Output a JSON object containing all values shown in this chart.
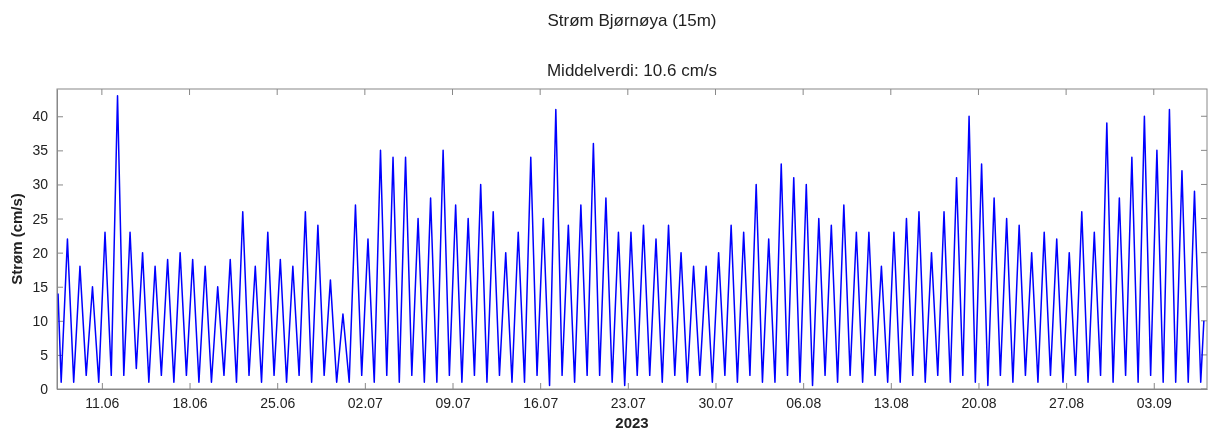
{
  "chart_data": {
    "type": "line",
    "title": "Strøm Bjørnøya (15m)",
    "subtitle": "Middelverdi: 10.6 cm/s",
    "xlabel": "2023",
    "ylabel": "Strøm (cm/s)",
    "xlim": [
      "2023-06-07T10:00",
      "2023-09-07T06:00"
    ],
    "xticks": [
      {
        "value": "2023-06-11",
        "label": "11.06"
      },
      {
        "value": "2023-06-18",
        "label": "18.06"
      },
      {
        "value": "2023-06-25",
        "label": "25.06"
      },
      {
        "value": "2023-07-02",
        "label": "02.07"
      },
      {
        "value": "2023-07-09",
        "label": "09.07"
      },
      {
        "value": "2023-07-16",
        "label": "16.07"
      },
      {
        "value": "2023-07-23",
        "label": "23.07"
      },
      {
        "value": "2023-07-30",
        "label": "30.07"
      },
      {
        "value": "2023-08-06",
        "label": "06.08"
      },
      {
        "value": "2023-08-13",
        "label": "13.08"
      },
      {
        "value": "2023-08-20",
        "label": "20.08"
      },
      {
        "value": "2023-08-27",
        "label": "27.08"
      },
      {
        "value": "2023-09-03",
        "label": "03.09"
      }
    ],
    "ylim": [
      0,
      44
    ],
    "yticks": [
      0,
      5,
      10,
      15,
      20,
      25,
      30,
      35,
      40
    ],
    "grid": false,
    "series": [
      {
        "color": "#0000ff",
        "x": [
          "2023-06-07T12:00",
          "2023-06-07T18:00",
          "2023-06-08T06:00",
          "2023-06-08T18:00",
          "2023-06-09T06:00",
          "2023-06-09T18:00",
          "2023-06-10T06:00",
          "2023-06-10T18:00",
          "2023-06-11T06:00",
          "2023-06-11T18:00",
          "2023-06-12T06:00",
          "2023-06-12T18:00",
          "2023-06-13T06:00",
          "2023-06-13T18:00",
          "2023-06-14T06:00",
          "2023-06-14T18:00",
          "2023-06-15T06:00",
          "2023-06-15T18:00",
          "2023-06-16T06:00",
          "2023-06-16T18:00",
          "2023-06-17T06:00",
          "2023-06-17T18:00",
          "2023-06-18T06:00",
          "2023-06-18T18:00",
          "2023-06-19T06:00",
          "2023-06-19T18:00",
          "2023-06-20T06:00",
          "2023-06-20T18:00",
          "2023-06-21T06:00",
          "2023-06-21T18:00",
          "2023-06-22T06:00",
          "2023-06-22T18:00",
          "2023-06-23T06:00",
          "2023-06-23T18:00",
          "2023-06-24T06:00",
          "2023-06-24T18:00",
          "2023-06-25T06:00",
          "2023-06-25T18:00",
          "2023-06-26T06:00",
          "2023-06-26T18:00",
          "2023-06-27T06:00",
          "2023-06-27T18:00",
          "2023-06-28T06:00",
          "2023-06-28T18:00",
          "2023-06-29T06:00",
          "2023-06-29T18:00",
          "2023-06-30T06:00",
          "2023-06-30T18:00",
          "2023-07-01T06:00",
          "2023-07-01T18:00",
          "2023-07-02T06:00",
          "2023-07-02T18:00",
          "2023-07-03T06:00",
          "2023-07-03T18:00",
          "2023-07-04T06:00",
          "2023-07-04T18:00",
          "2023-07-05T06:00",
          "2023-07-05T18:00",
          "2023-07-06T06:00",
          "2023-07-06T18:00",
          "2023-07-07T06:00",
          "2023-07-07T18:00",
          "2023-07-08T06:00",
          "2023-07-08T18:00",
          "2023-07-09T06:00",
          "2023-07-09T18:00",
          "2023-07-10T06:00",
          "2023-07-10T18:00",
          "2023-07-11T06:00",
          "2023-07-11T18:00",
          "2023-07-12T06:00",
          "2023-07-12T18:00",
          "2023-07-13T06:00",
          "2023-07-13T18:00",
          "2023-07-14T06:00",
          "2023-07-14T18:00",
          "2023-07-15T06:00",
          "2023-07-15T18:00",
          "2023-07-16T06:00",
          "2023-07-16T18:00",
          "2023-07-17T06:00",
          "2023-07-17T18:00",
          "2023-07-18T06:00",
          "2023-07-18T18:00",
          "2023-07-19T06:00",
          "2023-07-19T18:00",
          "2023-07-20T06:00",
          "2023-07-20T18:00",
          "2023-07-21T06:00",
          "2023-07-21T18:00",
          "2023-07-22T06:00",
          "2023-07-22T18:00",
          "2023-07-23T06:00",
          "2023-07-23T18:00",
          "2023-07-24T06:00",
          "2023-07-24T18:00",
          "2023-07-25T06:00",
          "2023-07-25T18:00",
          "2023-07-26T06:00",
          "2023-07-26T18:00",
          "2023-07-27T06:00",
          "2023-07-27T18:00",
          "2023-07-28T06:00",
          "2023-07-28T18:00",
          "2023-07-29T06:00",
          "2023-07-29T18:00",
          "2023-07-30T06:00",
          "2023-07-30T18:00",
          "2023-07-31T06:00",
          "2023-07-31T18:00",
          "2023-08-01T06:00",
          "2023-08-01T18:00",
          "2023-08-02T06:00",
          "2023-08-02T18:00",
          "2023-08-03T06:00",
          "2023-08-03T18:00",
          "2023-08-04T06:00",
          "2023-08-04T18:00",
          "2023-08-05T06:00",
          "2023-08-05T18:00",
          "2023-08-06T06:00",
          "2023-08-06T18:00",
          "2023-08-07T06:00",
          "2023-08-07T18:00",
          "2023-08-08T06:00",
          "2023-08-08T18:00",
          "2023-08-09T06:00",
          "2023-08-09T18:00",
          "2023-08-10T06:00",
          "2023-08-10T18:00",
          "2023-08-11T06:00",
          "2023-08-11T18:00",
          "2023-08-12T06:00",
          "2023-08-12T18:00",
          "2023-08-13T06:00",
          "2023-08-13T18:00",
          "2023-08-14T06:00",
          "2023-08-14T18:00",
          "2023-08-15T06:00",
          "2023-08-15T18:00",
          "2023-08-16T06:00",
          "2023-08-16T18:00",
          "2023-08-17T06:00",
          "2023-08-17T18:00",
          "2023-08-18T06:00",
          "2023-08-18T18:00",
          "2023-08-19T06:00",
          "2023-08-19T18:00",
          "2023-08-20T06:00",
          "2023-08-20T18:00",
          "2023-08-21T06:00",
          "2023-08-21T18:00",
          "2023-08-22T06:00",
          "2023-08-22T18:00",
          "2023-08-23T06:00",
          "2023-08-23T18:00",
          "2023-08-24T06:00",
          "2023-08-24T18:00",
          "2023-08-25T06:00",
          "2023-08-25T18:00",
          "2023-08-26T06:00",
          "2023-08-26T18:00",
          "2023-08-27T06:00",
          "2023-08-27T18:00",
          "2023-08-28T06:00",
          "2023-08-28T18:00",
          "2023-08-29T06:00",
          "2023-08-29T18:00",
          "2023-08-30T06:00",
          "2023-08-30T18:00",
          "2023-08-31T06:00",
          "2023-08-31T18:00",
          "2023-09-01T06:00",
          "2023-09-01T18:00",
          "2023-09-02T06:00",
          "2023-09-02T18:00",
          "2023-09-03T06:00",
          "2023-09-03T18:00",
          "2023-09-04T06:00",
          "2023-09-04T18:00",
          "2023-09-05T06:00",
          "2023-09-05T18:00",
          "2023-09-06T06:00",
          "2023-09-06T18:00",
          "2023-09-07T00:00"
        ],
        "values": [
          14,
          1,
          22,
          1,
          18,
          2,
          15,
          1,
          23,
          2,
          43,
          2,
          23,
          3,
          20,
          1,
          18,
          2,
          19,
          1,
          20,
          2,
          19,
          1,
          18,
          1,
          15,
          2,
          19,
          1,
          26,
          2,
          18,
          1,
          23,
          2,
          19,
          1,
          18,
          2,
          26,
          1,
          24,
          2,
          16,
          1,
          11,
          1,
          27,
          2,
          22,
          1,
          35,
          2,
          34,
          1,
          34,
          2,
          25,
          1,
          28,
          1,
          35,
          2,
          27,
          1,
          25,
          2,
          30,
          1,
          26,
          2,
          20,
          1,
          23,
          1,
          34,
          2,
          25,
          0.5,
          41,
          2,
          24,
          1,
          27,
          2,
          36,
          2,
          28,
          1,
          23,
          0.5,
          23,
          2,
          24,
          2,
          22,
          1,
          24,
          2,
          20,
          1,
          18,
          2,
          18,
          1,
          20,
          2,
          24,
          1,
          23,
          2,
          30,
          1,
          22,
          1,
          33,
          2,
          31,
          1,
          30,
          0.5,
          25,
          2,
          24,
          1,
          27,
          2,
          23,
          1,
          23,
          2,
          18,
          1,
          23,
          1,
          25,
          2,
          26,
          1,
          20,
          2,
          26,
          1,
          31,
          2,
          40,
          1,
          33,
          0.5,
          28,
          2,
          25,
          1,
          24,
          2,
          20,
          1,
          23,
          2,
          22,
          1,
          20,
          2,
          26,
          1,
          23,
          2,
          39,
          1,
          28,
          2,
          34,
          1,
          40,
          2,
          35,
          1,
          41,
          1,
          32,
          1,
          29,
          1,
          10
        ]
      }
    ]
  }
}
